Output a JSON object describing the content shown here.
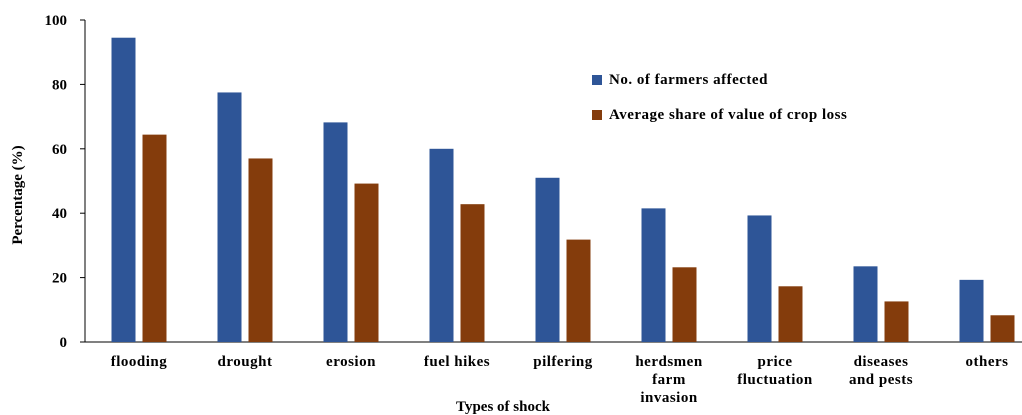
{
  "chart_data": {
    "type": "bar",
    "xlabel": "Types of shock",
    "ylabel": "Percentage (%)",
    "ylim": [
      0,
      100
    ],
    "yticks": [
      0,
      20,
      40,
      60,
      80,
      100
    ],
    "grid": false,
    "legend_position": "top-right",
    "categories": [
      [
        "flooding"
      ],
      [
        "drought"
      ],
      [
        "erosion"
      ],
      [
        "fuel hikes"
      ],
      [
        "pilfering"
      ],
      [
        "herdsmen",
        "farm",
        "invasion"
      ],
      [
        "price",
        "fluctuation"
      ],
      [
        "diseases",
        "and pests"
      ],
      [
        "others"
      ]
    ],
    "series": [
      {
        "name": "No. of farmers affected",
        "color": "#2E5597",
        "values": [
          94.5,
          77.5,
          68.2,
          60.0,
          51.0,
          41.5,
          39.3,
          23.5,
          19.3
        ]
      },
      {
        "name": "Average share of value of crop loss",
        "color": "#843C0C",
        "values": [
          64.4,
          57.0,
          49.2,
          42.8,
          31.8,
          23.2,
          17.3,
          12.6,
          8.3
        ]
      }
    ]
  }
}
